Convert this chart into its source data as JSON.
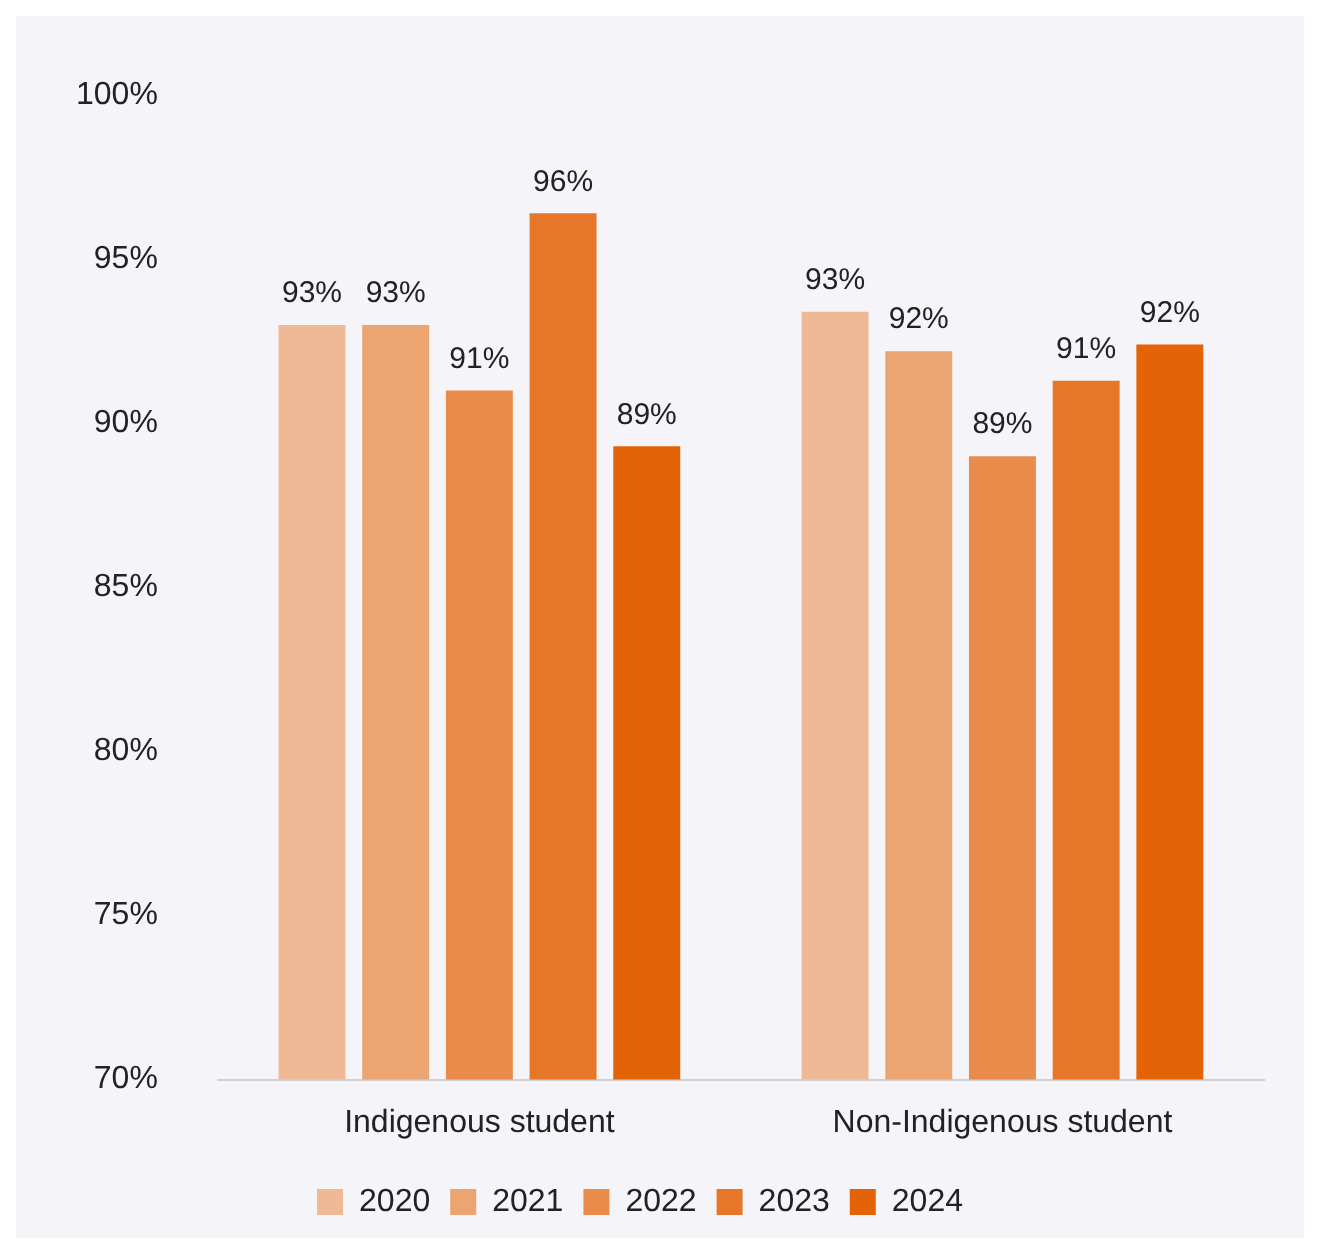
{
  "chart_data": {
    "type": "bar",
    "categories": [
      "Indigenous student",
      "Non-Indigenous student"
    ],
    "series": [
      {
        "name": "2020",
        "color": "#f0b995",
        "values": [
          93.0,
          93.4
        ],
        "value_labels": [
          "93%",
          "93%"
        ]
      },
      {
        "name": "2021",
        "color": "#eca470",
        "values": [
          93.0,
          92.2
        ],
        "value_labels": [
          "93%",
          "92%"
        ]
      },
      {
        "name": "2022",
        "color": "#e98c4b",
        "values": [
          91.0,
          89.0
        ],
        "value_labels": [
          "91%",
          "89%"
        ]
      },
      {
        "name": "2023",
        "color": "#e67628",
        "values": [
          96.4,
          91.3
        ],
        "value_labels": [
          "96%",
          "91%"
        ]
      },
      {
        "name": "2024",
        "color": "#e36306",
        "values": [
          89.3,
          92.4
        ],
        "value_labels": [
          "89%",
          "92%"
        ]
      }
    ],
    "ylim": [
      70,
      100
    ],
    "yticks": [
      {
        "value": 70,
        "label": "70%"
      },
      {
        "value": 75,
        "label": "75%"
      },
      {
        "value": 80,
        "label": "80%"
      },
      {
        "value": 85,
        "label": "85%"
      },
      {
        "value": 90,
        "label": "90%"
      },
      {
        "value": 95,
        "label": "95%"
      },
      {
        "value": 100,
        "label": "100%"
      }
    ],
    "grid": false,
    "legend": "bottom"
  }
}
